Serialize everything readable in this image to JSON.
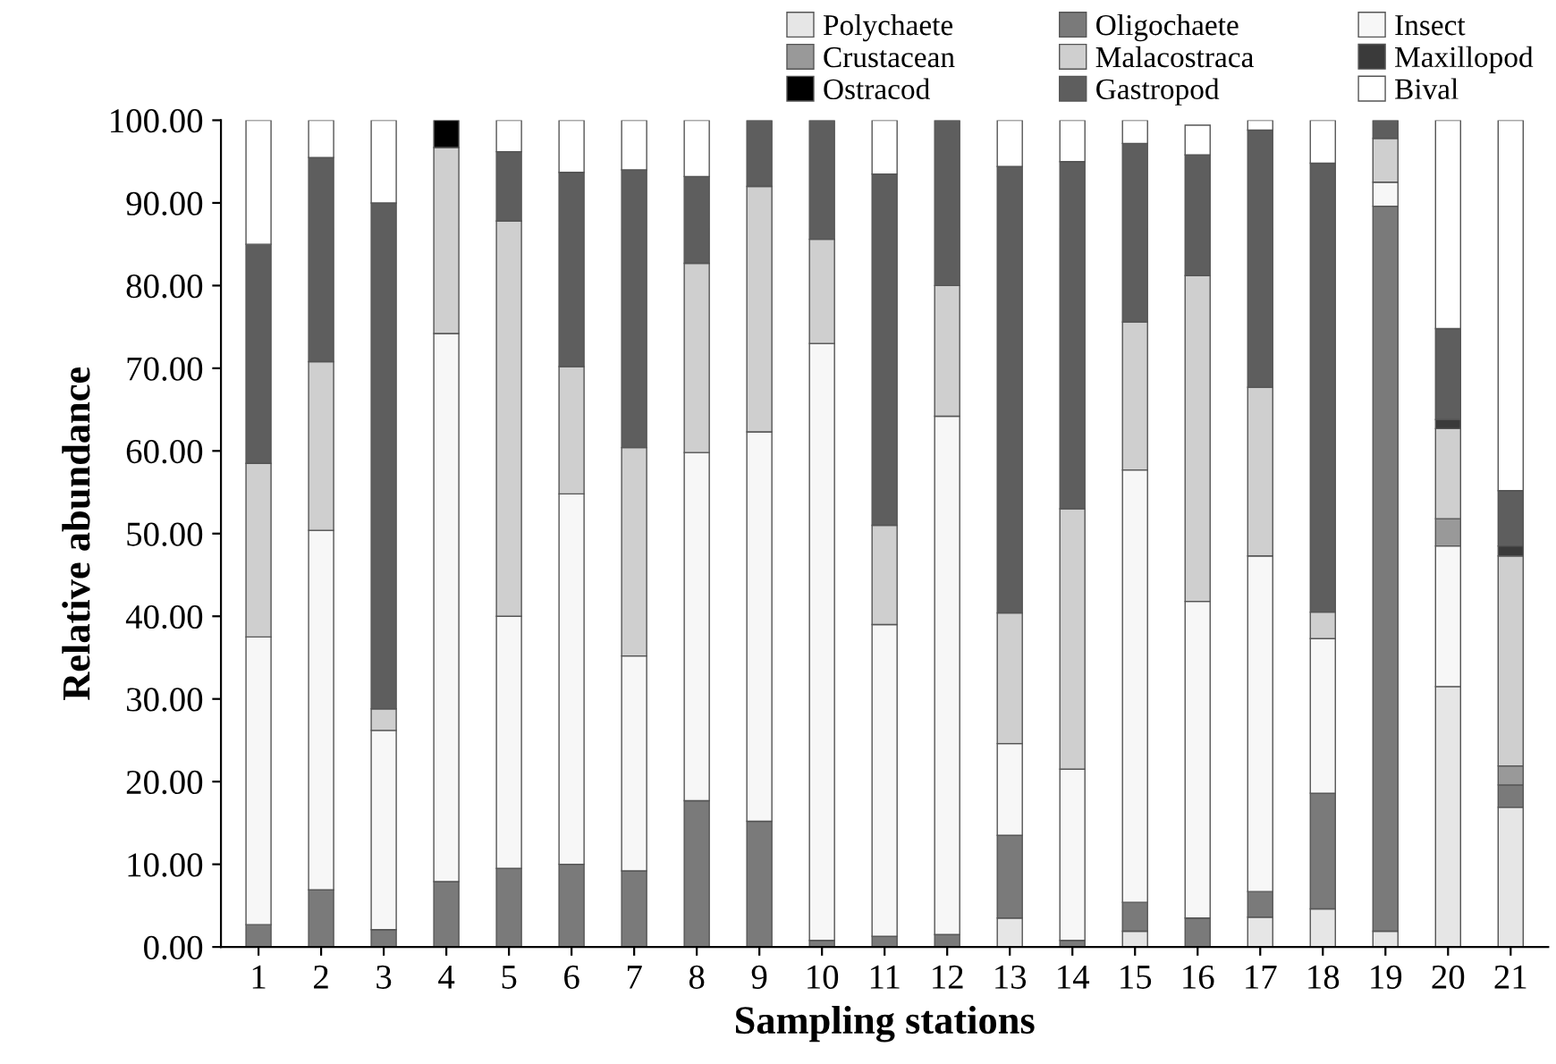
{
  "chart_data": {
    "type": "bar",
    "stacked": true,
    "xlabel": "Sampling stations",
    "ylabel": "Relative abundance",
    "categories": [
      "1",
      "2",
      "3",
      "4",
      "5",
      "6",
      "7",
      "8",
      "9",
      "10",
      "11",
      "12",
      "13",
      "14",
      "15",
      "16",
      "17",
      "18",
      "19",
      "20",
      "21"
    ],
    "series": [
      {
        "name": "Polychaete",
        "color": "#e6e6e6",
        "values": [
          null,
          null,
          null,
          null,
          null,
          null,
          null,
          null,
          null,
          null,
          null,
          null,
          3.5,
          null,
          1.9,
          null,
          3.6,
          4.6,
          1.9,
          31.5,
          16.9
        ]
      },
      {
        "name": "Oligochaete",
        "color": "#7a7a7a",
        "values": [
          2.7,
          6.9,
          2.1,
          7.9,
          9.5,
          10,
          9.2,
          17.7,
          15.2,
          0.8,
          1.3,
          1.5,
          10,
          0.8,
          3.5,
          3.5,
          3.1,
          14,
          87.7,
          null,
          2.7
        ]
      },
      {
        "name": "Insect",
        "color": "#f7f7f7",
        "values": [
          34.8,
          43.5,
          24.1,
          66.3,
          30.5,
          44.8,
          26,
          42.1,
          47.1,
          72.2,
          37.7,
          62.7,
          11.1,
          20.7,
          52.3,
          38.3,
          40.6,
          18.7,
          2.9,
          17,
          null
        ]
      },
      {
        "name": "Crustacean",
        "color": "#999999",
        "values": [
          null,
          null,
          null,
          null,
          null,
          null,
          null,
          null,
          null,
          null,
          null,
          null,
          null,
          null,
          null,
          null,
          null,
          null,
          null,
          3.3,
          2.3
        ]
      },
      {
        "name": "Malacostraca",
        "color": "#cfcfcf",
        "values": [
          21,
          20.4,
          2.6,
          22.5,
          47.8,
          15.4,
          25.2,
          22.9,
          29.7,
          12.6,
          12,
          15.8,
          15.8,
          31.5,
          17.9,
          39.4,
          20.4,
          3.2,
          5.3,
          10.9,
          25.4
        ]
      },
      {
        "name": "Maxillopod",
        "color": "#3a3a3a",
        "values": [
          null,
          null,
          null,
          null,
          null,
          null,
          null,
          null,
          null,
          null,
          null,
          null,
          null,
          null,
          null,
          null,
          null,
          null,
          null,
          1.1,
          1.2
        ]
      },
      {
        "name": "Ostracod",
        "color": "#000000",
        "values": [
          null,
          null,
          null,
          3.3,
          null,
          null,
          null,
          null,
          null,
          null,
          null,
          null,
          null,
          null,
          null,
          null,
          null,
          null,
          null,
          null,
          null
        ]
      },
      {
        "name": "Gastropod",
        "color": "#5e5e5e",
        "values": [
          26.5,
          24.7,
          61.2,
          null,
          8.4,
          23.5,
          33.6,
          10.5,
          8,
          14.4,
          42.5,
          20,
          54,
          42,
          21.6,
          14.6,
          31.1,
          54.3,
          2.2,
          11,
          6.7
        ]
      },
      {
        "name": "Bival",
        "color": "#ffffff",
        "values": [
          15,
          4.5,
          10,
          null,
          3.8,
          6.3,
          6,
          6.8,
          null,
          null,
          6.5,
          null,
          5.6,
          5,
          2.8,
          3.6,
          1.2,
          5.2,
          null,
          25.2,
          44.8
        ]
      }
    ],
    "ylim": [
      0,
      100
    ],
    "yticks": [
      {
        "value": 0,
        "label": "0.00"
      },
      {
        "value": 10,
        "label": "10.00"
      },
      {
        "value": 20,
        "label": "20.00"
      },
      {
        "value": 30,
        "label": "30.00"
      },
      {
        "value": 40,
        "label": "40.00"
      },
      {
        "value": 50,
        "label": "50.00"
      },
      {
        "value": 60,
        "label": "60.00"
      },
      {
        "value": 70,
        "label": "70.00"
      },
      {
        "value": 80,
        "label": "80.00"
      },
      {
        "value": 90,
        "label": "90.00"
      },
      {
        "value": 100,
        "label": "100.00"
      }
    ],
    "grid": false,
    "legend": "top right"
  }
}
